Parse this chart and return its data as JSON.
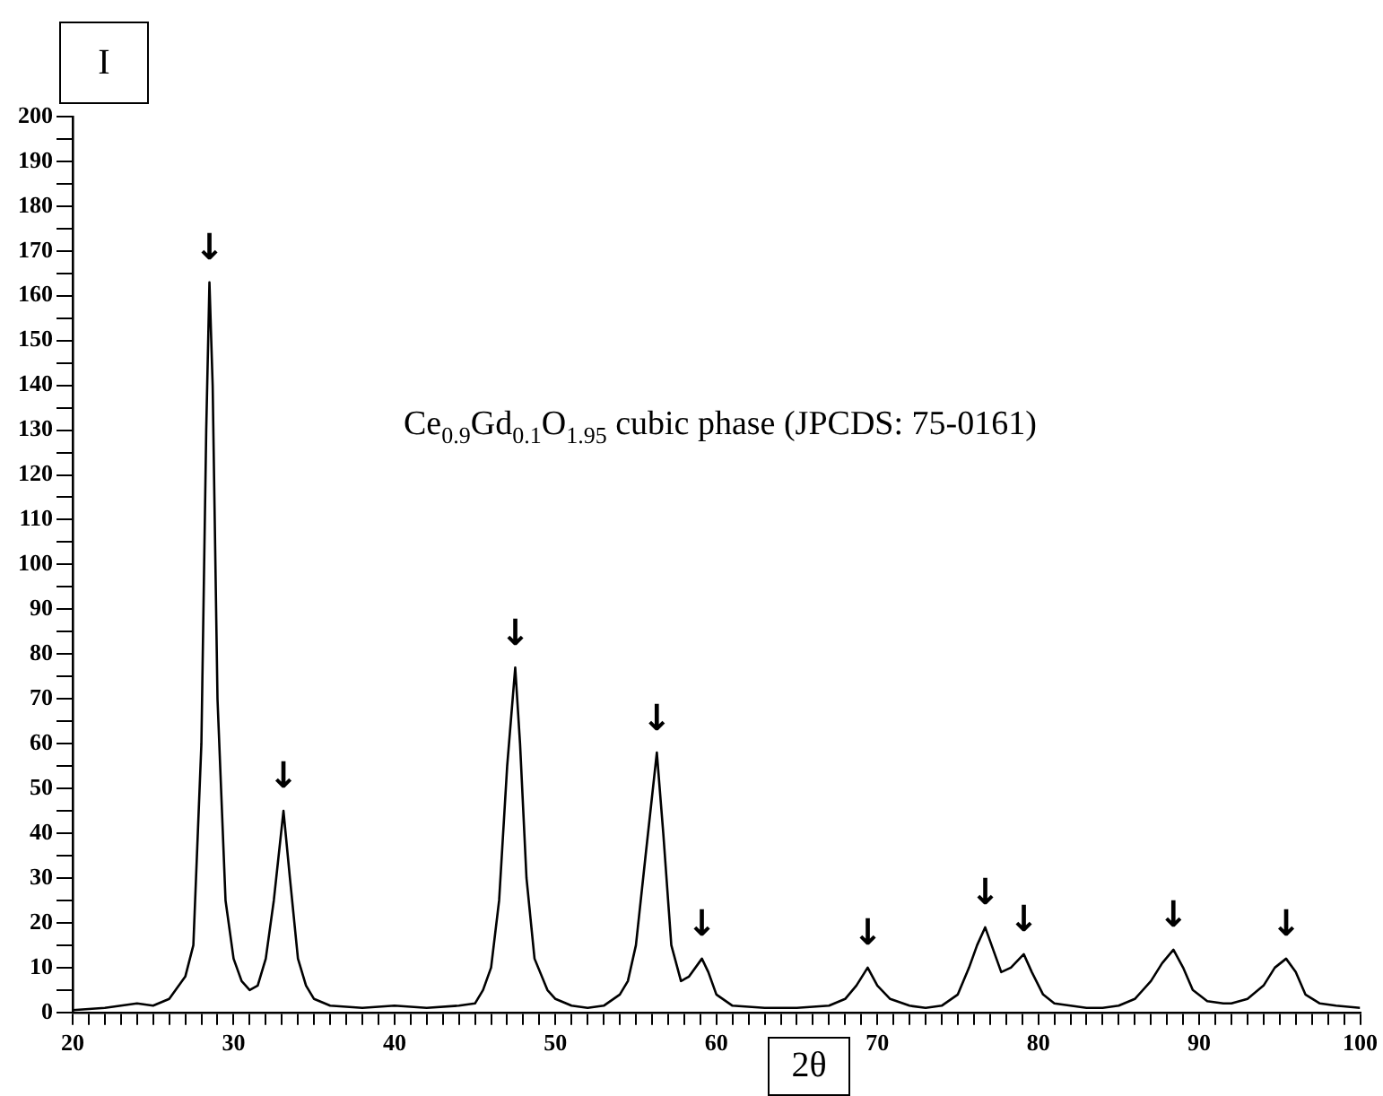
{
  "chart_data": {
    "type": "line",
    "xlabel": "2θ",
    "ylabel": "I",
    "x": [
      20,
      22,
      24,
      25,
      26,
      27,
      27.5,
      28,
      28.3,
      28.5,
      28.7,
      29,
      29.5,
      30,
      30.5,
      31,
      31.5,
      32,
      32.5,
      33.1,
      33.5,
      34,
      34.5,
      35,
      36,
      38,
      40,
      42,
      44,
      45,
      45.5,
      46,
      46.5,
      47,
      47.5,
      47.8,
      48.2,
      48.7,
      49.5,
      50,
      51,
      52,
      53,
      54,
      54.5,
      55,
      55.6,
      56.3,
      56.7,
      57.2,
      57.8,
      58.3,
      59.1,
      59.5,
      60,
      61,
      63,
      65,
      67,
      68,
      68.7,
      69.4,
      70,
      70.8,
      72,
      73,
      74,
      75,
      75.7,
      76.2,
      76.7,
      77.2,
      77.7,
      78.3,
      79.1,
      79.6,
      80.3,
      81,
      82,
      83,
      84,
      85,
      86,
      87,
      87.7,
      88.4,
      89,
      89.6,
      90.5,
      91.5,
      92,
      93,
      94,
      94.7,
      95.4,
      96,
      96.6,
      97.5,
      98.5,
      100
    ],
    "series": [
      {
        "color": "#000000",
        "values": [
          0.5,
          1,
          2,
          1.5,
          3,
          8,
          15,
          60,
          130,
          163,
          140,
          70,
          25,
          12,
          7,
          5,
          6,
          12,
          25,
          45,
          30,
          12,
          6,
          3,
          1.5,
          1,
          1.5,
          1,
          1.5,
          2,
          5,
          10,
          25,
          55,
          77,
          60,
          30,
          12,
          5,
          3,
          1.5,
          1,
          1.5,
          4,
          7,
          15,
          35,
          58,
          40,
          15,
          7,
          8,
          12,
          9,
          4,
          1.5,
          1,
          1,
          1.5,
          3,
          6,
          10,
          6,
          3,
          1.5,
          1,
          1.5,
          4,
          10,
          15,
          19,
          14,
          9,
          10,
          13,
          9,
          4,
          2,
          1.5,
          1,
          1,
          1.5,
          3,
          7,
          11,
          14,
          10,
          5,
          2.5,
          2,
          2,
          3,
          6,
          10,
          12,
          9,
          4,
          2,
          1.5,
          1
        ]
      }
    ],
    "xlim": [
      20,
      100
    ],
    "xticks": [
      20,
      {
        "value": 21,
        "label": null
      },
      {
        "value": 22,
        "label": null
      },
      {
        "value": 23,
        "label": null
      },
      {
        "value": 24,
        "label": null
      },
      {
        "value": 25,
        "label": null
      },
      {
        "value": 26,
        "label": null
      },
      {
        "value": 27,
        "label": null
      },
      {
        "value": 28,
        "label": null
      },
      {
        "value": 29,
        "label": null
      },
      30,
      {
        "value": 31,
        "label": null
      },
      {
        "value": 32,
        "label": null
      },
      {
        "value": 33,
        "label": null
      },
      {
        "value": 34,
        "label": null
      },
      {
        "value": 35,
        "label": null
      },
      {
        "value": 36,
        "label": null
      },
      {
        "value": 37,
        "label": null
      },
      {
        "value": 38,
        "label": null
      },
      {
        "value": 39,
        "label": null
      },
      40,
      {
        "value": 41,
        "label": null
      },
      {
        "value": 42,
        "label": null
      },
      {
        "value": 43,
        "label": null
      },
      {
        "value": 44,
        "label": null
      },
      {
        "value": 45,
        "label": null
      },
      {
        "value": 46,
        "label": null
      },
      {
        "value": 47,
        "label": null
      },
      {
        "value": 48,
        "label": null
      },
      {
        "value": 49,
        "label": null
      },
      50,
      {
        "value": 51,
        "label": null
      },
      {
        "value": 52,
        "label": null
      },
      {
        "value": 53,
        "label": null
      },
      {
        "value": 54,
        "label": null
      },
      {
        "value": 55,
        "label": null
      },
      {
        "value": 56,
        "label": null
      },
      {
        "value": 57,
        "label": null
      },
      {
        "value": 58,
        "label": null
      },
      {
        "value": 59,
        "label": null
      },
      60,
      {
        "value": 61,
        "label": null
      },
      {
        "value": 62,
        "label": null
      },
      {
        "value": 63,
        "label": null
      },
      {
        "value": 64,
        "label": null
      },
      {
        "value": 65,
        "label": null
      },
      {
        "value": 66,
        "label": null
      },
      {
        "value": 67,
        "label": null
      },
      {
        "value": 68,
        "label": null
      },
      {
        "value": 69,
        "label": null
      },
      70,
      {
        "value": 71,
        "label": null
      },
      {
        "value": 72,
        "label": null
      },
      {
        "value": 73,
        "label": null
      },
      {
        "value": 74,
        "label": null
      },
      {
        "value": 75,
        "label": null
      },
      {
        "value": 76,
        "label": null
      },
      {
        "value": 77,
        "label": null
      },
      {
        "value": 78,
        "label": null
      },
      {
        "value": 79,
        "label": null
      },
      80,
      {
        "value": 81,
        "label": null
      },
      {
        "value": 82,
        "label": null
      },
      {
        "value": 83,
        "label": null
      },
      {
        "value": 84,
        "label": null
      },
      {
        "value": 85,
        "label": null
      },
      {
        "value": 86,
        "label": null
      },
      {
        "value": 87,
        "label": null
      },
      {
        "value": 88,
        "label": null
      },
      {
        "value": 89,
        "label": null
      },
      90,
      {
        "value": 91,
        "label": null
      },
      {
        "value": 92,
        "label": null
      },
      {
        "value": 93,
        "label": null
      },
      {
        "value": 94,
        "label": null
      },
      {
        "value": 95,
        "label": null
      },
      {
        "value": 96,
        "label": null
      },
      {
        "value": 97,
        "label": null
      },
      {
        "value": 98,
        "label": null
      },
      {
        "value": 99,
        "label": null
      },
      100
    ],
    "ylim": [
      0,
      200
    ],
    "yticks": [
      0,
      {
        "value": 5,
        "label": null
      },
      10,
      {
        "value": 15,
        "label": null
      },
      20,
      {
        "value": 25,
        "label": null
      },
      30,
      {
        "value": 35,
        "label": null
      },
      40,
      {
        "value": 45,
        "label": null
      },
      50,
      {
        "value": 55,
        "label": null
      },
      60,
      {
        "value": 65,
        "label": null
      },
      70,
      {
        "value": 75,
        "label": null
      },
      80,
      {
        "value": 85,
        "label": null
      },
      90,
      {
        "value": 95,
        "label": null
      },
      100,
      {
        "value": 105,
        "label": null
      },
      110,
      {
        "value": 115,
        "label": null
      },
      120,
      {
        "value": 125,
        "label": null
      },
      130,
      {
        "value": 135,
        "label": null
      },
      140,
      {
        "value": 145,
        "label": null
      },
      150,
      {
        "value": 155,
        "label": null
      },
      160,
      {
        "value": 165,
        "label": null
      },
      170,
      {
        "value": 175,
        "label": null
      },
      180,
      {
        "value": 185,
        "label": null
      },
      190,
      {
        "value": 195,
        "label": null
      },
      200
    ],
    "grid": false,
    "legend": false,
    "marker": "none",
    "line_style": "solid",
    "annotations": [
      "Ce$_{0.9}$Gd$_{0.1}$O$_{1.95}$ cubic phase (JPCDS: 75-0161)",
      {
        "text": "↓",
        "x": 28.5,
        "y": 163
      },
      {
        "text": "↓",
        "x": 33.1,
        "y": 45
      },
      {
        "text": "↓",
        "x": 47.5,
        "y": 77
      },
      {
        "text": "↓",
        "x": 56.3,
        "y": 58
      },
      {
        "text": "↓",
        "x": 59.1,
        "y": 12
      },
      {
        "text": "↓",
        "x": 69.4,
        "y": 10
      },
      {
        "text": "↓",
        "x": 76.7,
        "y": 19
      },
      {
        "text": "↓",
        "x": 79.1,
        "y": 13
      },
      {
        "text": "↓",
        "x": 88.4,
        "y": 14
      },
      {
        "text": "↓",
        "x": 95.4,
        "y": 12
      }
    ]
  }
}
